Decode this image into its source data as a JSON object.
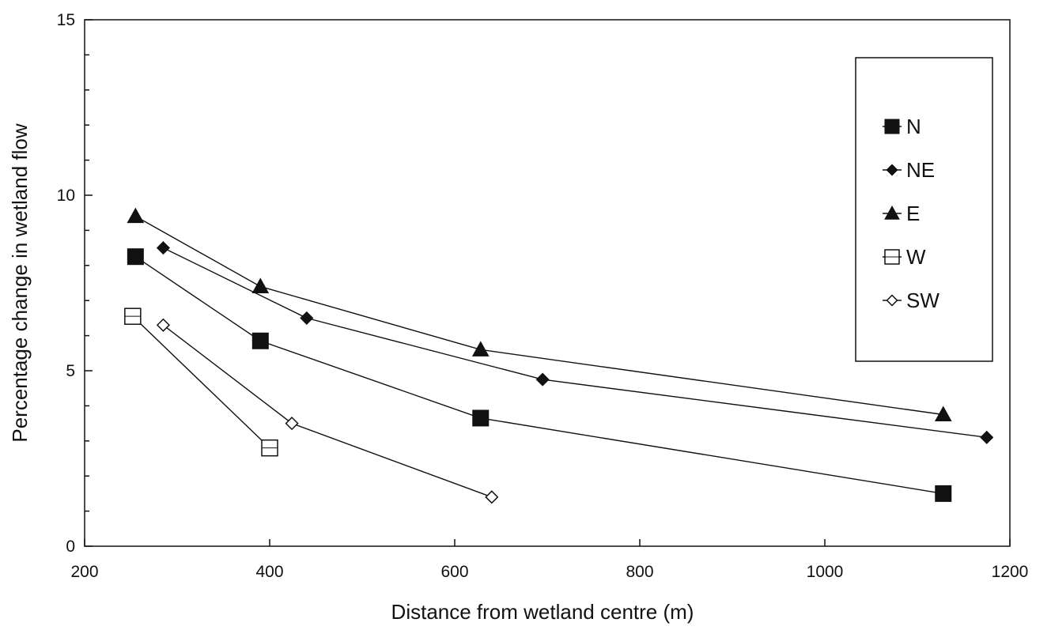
{
  "chart_data": {
    "type": "line",
    "xlabel": "Distance from wetland centre (m)",
    "ylabel": "Percentage change in wetland flow",
    "xlim": [
      200,
      1200
    ],
    "ylim": [
      0,
      15
    ],
    "x_ticks": [
      200,
      400,
      600,
      800,
      1000,
      1200
    ],
    "y_ticks": [
      0,
      5,
      10,
      15
    ],
    "y_minor_step": 1,
    "grid": false,
    "legend_position": "top-right",
    "series": [
      {
        "name": "N",
        "marker": "square-filled",
        "color": "#111111",
        "x": [
          255,
          390,
          628,
          1128
        ],
        "y": [
          8.25,
          5.85,
          3.65,
          1.5
        ]
      },
      {
        "name": "NE",
        "marker": "diamond-filled",
        "color": "#111111",
        "x": [
          285,
          440,
          695,
          1175
        ],
        "y": [
          8.5,
          6.5,
          4.75,
          3.1
        ]
      },
      {
        "name": "E",
        "marker": "triangle-filled",
        "color": "#111111",
        "x": [
          255,
          390,
          628,
          1128
        ],
        "y": [
          9.4,
          7.4,
          5.6,
          3.75
        ]
      },
      {
        "name": "W",
        "marker": "square-open",
        "color": "#111111",
        "x": [
          252,
          400
        ],
        "y": [
          6.55,
          2.8
        ]
      },
      {
        "name": "SW",
        "marker": "diamond-open",
        "color": "#111111",
        "x": [
          285,
          424,
          640
        ],
        "y": [
          6.3,
          3.5,
          1.4
        ]
      }
    ]
  }
}
